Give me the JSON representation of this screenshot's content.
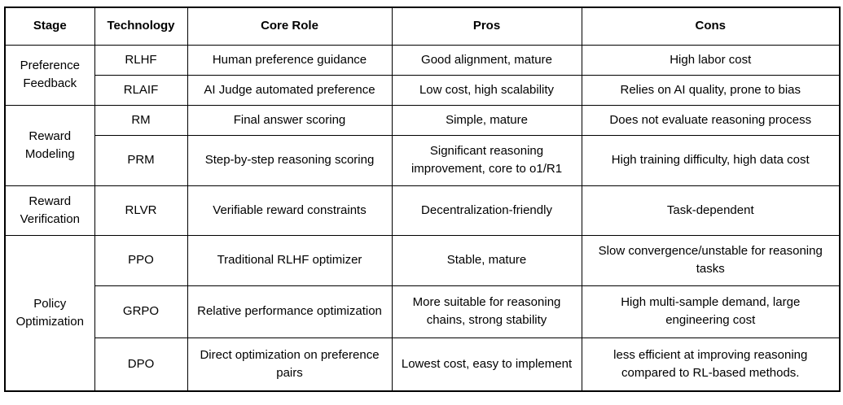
{
  "table": {
    "headers": {
      "stage": "Stage",
      "technology": "Technology",
      "core_role": "Core Role",
      "pros": "Pros",
      "cons": "Cons"
    },
    "groups": [
      {
        "stage": "Preference Feedback",
        "rows": [
          {
            "technology": "RLHF",
            "core_role": "Human preference guidance",
            "pros": "Good alignment, mature",
            "cons": "High labor cost"
          },
          {
            "technology": "RLAIF",
            "core_role": "AI Judge automated preference",
            "pros": "Low cost, high scalability",
            "cons": "Relies on AI quality, prone to bias"
          }
        ]
      },
      {
        "stage": "Reward Modeling",
        "rows": [
          {
            "technology": "RM",
            "core_role": "Final answer scoring",
            "pros": "Simple, mature",
            "cons": "Does not evaluate reasoning process"
          },
          {
            "technology": "PRM",
            "core_role": "Step-by-step reasoning scoring",
            "pros": "Significant reasoning improvement, core to o1/R1",
            "cons": "High training difficulty, high data cost"
          }
        ]
      },
      {
        "stage": "Reward Verification",
        "rows": [
          {
            "technology": "RLVR",
            "core_role": "Verifiable reward constraints",
            "pros": "Decentralization-friendly",
            "cons": "Task-dependent"
          }
        ]
      },
      {
        "stage": "Policy Optimization",
        "rows": [
          {
            "technology": "PPO",
            "core_role": "Traditional RLHF optimizer",
            "pros": "Stable, mature",
            "cons": "Slow convergence/unstable for reasoning tasks"
          },
          {
            "technology": "GRPO",
            "core_role": "Relative performance optimization",
            "pros": "More suitable for reasoning chains, strong stability",
            "cons": "High multi-sample demand, large engineering cost"
          },
          {
            "technology": "DPO",
            "core_role": "Direct optimization on preference pairs",
            "pros": "Lowest cost, easy to implement",
            "cons": "less efficient at improving reasoning compared to RL-based methods."
          }
        ]
      }
    ]
  }
}
